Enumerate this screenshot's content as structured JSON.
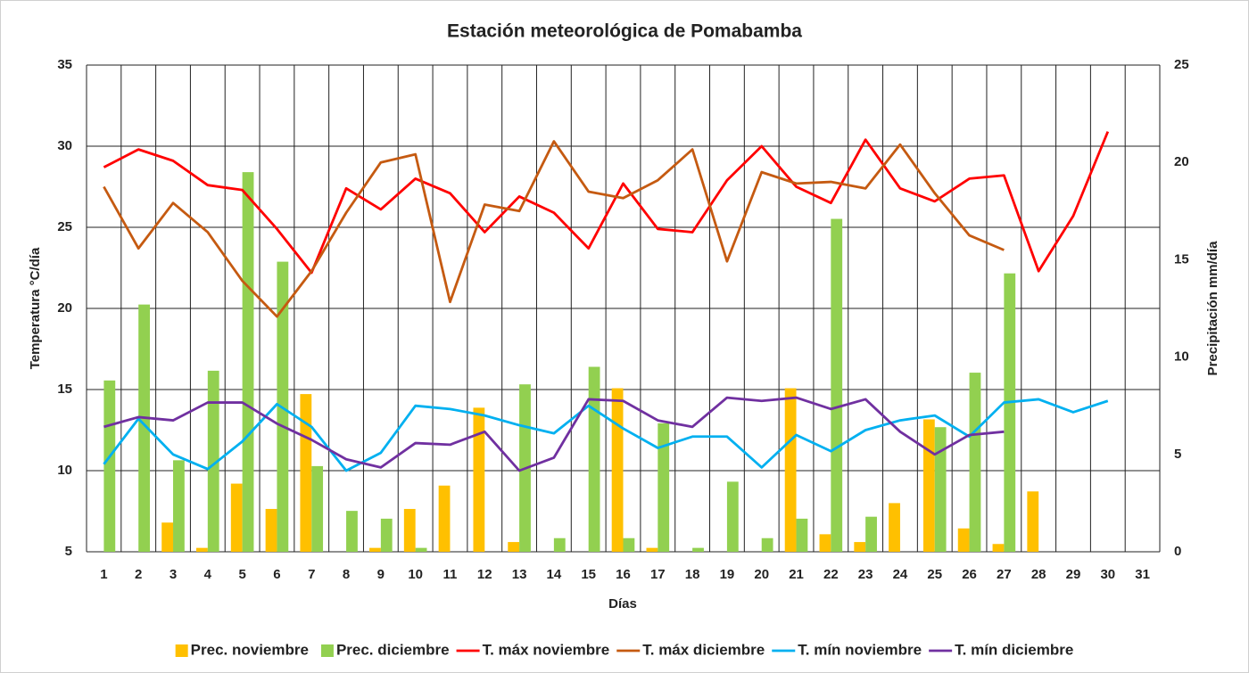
{
  "chart_data": {
    "type": "combo",
    "title": "Estación meteorológica de Pomabamba",
    "x_label": "Días",
    "y_label": "Temperatura °C/día",
    "y2_label": "Precipitación mm/día",
    "categories": [
      "1",
      "2",
      "3",
      "4",
      "5",
      "6",
      "7",
      "8",
      "9",
      "10",
      "11",
      "12",
      "13",
      "14",
      "15",
      "16",
      "17",
      "18",
      "19",
      "20",
      "21",
      "22",
      "23",
      "24",
      "25",
      "26",
      "27",
      "28",
      "29",
      "30",
      "31"
    ],
    "ylim": [
      5,
      35
    ],
    "yticks": [
      5,
      10,
      15,
      20,
      25,
      30,
      35
    ],
    "y2lim": [
      0,
      25
    ],
    "y2ticks": [
      0,
      5,
      10,
      15,
      20,
      25
    ],
    "grid": true,
    "legend": "bottom",
    "series": [
      {
        "name": "Prec. noviembre",
        "type": "bar",
        "axis": "y2",
        "color": "#ffc000",
        "values": [
          null,
          null,
          1.5,
          0.2,
          3.5,
          2.2,
          8.1,
          null,
          0.2,
          2.2,
          3.4,
          7.4,
          0.5,
          null,
          null,
          8.4,
          0.2,
          null,
          null,
          null,
          8.4,
          0.9,
          0.5,
          2.5,
          6.8,
          1.2,
          0.4,
          3.1,
          null,
          null,
          null
        ]
      },
      {
        "name": "Prec. diciembre",
        "type": "bar",
        "axis": "y2",
        "color": "#92d050",
        "values": [
          8.8,
          12.7,
          4.7,
          9.3,
          19.5,
          14.9,
          4.4,
          2.1,
          1.7,
          0.2,
          null,
          null,
          8.6,
          0.7,
          9.5,
          0.7,
          6.6,
          0.2,
          3.6,
          0.7,
          1.7,
          17.1,
          1.8,
          null,
          6.4,
          9.2,
          14.3,
          null,
          null,
          null,
          null
        ]
      },
      {
        "name": "T. máx noviembre",
        "type": "line",
        "axis": "y",
        "color": "#ff0000",
        "values": [
          28.7,
          29.8,
          29.1,
          27.6,
          27.3,
          24.9,
          22.2,
          27.4,
          26.1,
          28.0,
          27.1,
          24.7,
          26.9,
          25.9,
          23.7,
          27.7,
          24.9,
          24.7,
          27.9,
          30.0,
          27.5,
          26.5,
          30.4,
          27.4,
          26.6,
          28.0,
          28.2,
          22.3,
          25.7,
          30.9,
          null
        ]
      },
      {
        "name": "T. máx diciembre",
        "type": "line",
        "axis": "y",
        "color": "#c55a11",
        "values": [
          27.5,
          23.7,
          26.5,
          24.7,
          21.7,
          19.5,
          22.3,
          25.9,
          29.0,
          29.5,
          20.4,
          26.4,
          26.0,
          30.3,
          27.2,
          26.8,
          27.9,
          29.8,
          22.9,
          28.4,
          27.7,
          27.8,
          27.4,
          30.1,
          27.1,
          24.5,
          23.6,
          null,
          null,
          null,
          null
        ]
      },
      {
        "name": "T. mín noviembre",
        "type": "line",
        "axis": "y",
        "color": "#00b0f0",
        "values": [
          10.4,
          13.2,
          11.0,
          10.1,
          11.8,
          14.1,
          12.7,
          10.0,
          11.1,
          14.0,
          13.8,
          13.4,
          12.8,
          12.3,
          14.0,
          12.6,
          11.4,
          12.1,
          12.1,
          10.2,
          12.2,
          11.2,
          12.5,
          13.1,
          13.4,
          12.1,
          14.2,
          14.4,
          13.6,
          14.3,
          null
        ]
      },
      {
        "name": "T. mín diciembre",
        "type": "line",
        "axis": "y",
        "color": "#7030a0",
        "values": [
          12.7,
          13.3,
          13.1,
          14.2,
          14.2,
          12.9,
          11.9,
          10.7,
          10.2,
          11.7,
          11.6,
          12.4,
          10.0,
          10.8,
          14.4,
          14.3,
          13.1,
          12.7,
          14.5,
          14.3,
          14.5,
          13.8,
          14.4,
          12.4,
          11.0,
          12.2,
          12.4,
          null,
          null,
          null,
          null
        ]
      }
    ]
  }
}
